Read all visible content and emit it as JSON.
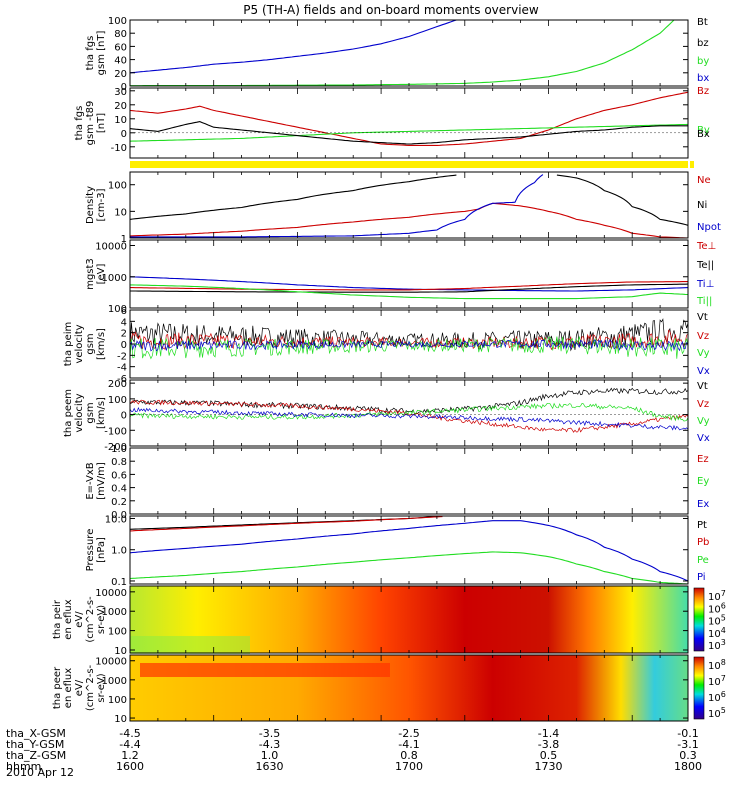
{
  "title": "P5 (TH-A) fields and on-board moments overview",
  "x_rows": [
    {
      "label": "tha_X-GSM",
      "values": [
        "-4.5",
        "-3.5",
        "-2.5",
        "-1.4",
        "-0.1"
      ]
    },
    {
      "label": "tha_Y-GSM",
      "values": [
        "-4.4",
        "-4.3",
        "-4.1",
        "-3.8",
        "-3.1"
      ]
    },
    {
      "label": "tha_Z-GSM",
      "values": [
        "1.2",
        "1.0",
        "0.8",
        "0.5",
        "0.3"
      ]
    },
    {
      "label": "hhmm",
      "values": [
        "1600",
        "1630",
        "1700",
        "1730",
        "1800"
      ]
    }
  ],
  "date_label": "2010 Apr 12",
  "colors": {
    "black": "#000000",
    "red": "#cc0000",
    "green": "#22dd22",
    "blue": "#0000cc",
    "yellow": "#ffee00"
  },
  "chart_data": [
    {
      "type": "line",
      "ylabel": "tha fgs gsm [nT]",
      "ylim": [
        0,
        100
      ],
      "yticks": [
        "0",
        "20",
        "40",
        "60",
        "80",
        "100"
      ],
      "legend": [
        "Bt",
        "bz",
        "by",
        "bx"
      ],
      "series": [
        {
          "name": "bx",
          "color": "blue",
          "x": [
            1600,
            1610,
            1620,
            1630,
            1640,
            1650,
            1660,
            1670,
            1680,
            1690,
            1700,
            1710,
            1717
          ],
          "values": [
            20,
            24,
            28,
            33,
            36,
            40,
            45,
            50,
            56,
            64,
            75,
            90,
            100
          ]
        },
        {
          "name": "by",
          "color": "green",
          "x": [
            1600,
            1640,
            1680,
            1700,
            1720,
            1730,
            1740,
            1750,
            1760,
            1770,
            1780,
            1790,
            1795
          ],
          "values": [
            0.5,
            0.8,
            1.5,
            2.5,
            4,
            6,
            9,
            14,
            22,
            35,
            55,
            80,
            100
          ]
        }
      ]
    },
    {
      "type": "line",
      "ylabel": "tha fgs gsm -t89 [nT]",
      "ylim": [
        -18,
        32
      ],
      "yticks": [
        "-10",
        "0",
        "10",
        "20",
        "30"
      ],
      "legend": [
        "Bz",
        "By",
        "Bx"
      ],
      "series": [
        {
          "name": "Bz",
          "color": "red",
          "x": [
            1600,
            1610,
            1620,
            1625,
            1630,
            1640,
            1650,
            1660,
            1670,
            1680,
            1690,
            1700,
            1710,
            1720,
            1730,
            1740,
            1750,
            1760,
            1770,
            1780,
            1790,
            1800
          ],
          "values": [
            16,
            14,
            17,
            19,
            16,
            12,
            8,
            4,
            0,
            -4,
            -8,
            -9,
            -9,
            -8,
            -6,
            -4,
            2,
            10,
            16,
            20,
            25,
            29
          ]
        },
        {
          "name": "By",
          "color": "green",
          "x": [
            1600,
            1620,
            1640,
            1660,
            1680,
            1700,
            1720,
            1740,
            1760,
            1780,
            1800
          ],
          "values": [
            -6,
            -5,
            -4,
            -2,
            0,
            1,
            2,
            3,
            4,
            5,
            6
          ]
        },
        {
          "name": "Bx",
          "color": "black",
          "x": [
            1600,
            1610,
            1620,
            1625,
            1630,
            1640,
            1650,
            1660,
            1670,
            1680,
            1690,
            1700,
            1710,
            1720,
            1730,
            1740,
            1750,
            1760,
            1770,
            1780,
            1790,
            1800
          ],
          "values": [
            3,
            1,
            6,
            8,
            4,
            2,
            0,
            -2,
            -4,
            -6,
            -7,
            -8,
            -7,
            -5,
            -4,
            -3,
            -1,
            1,
            2,
            4,
            5,
            5
          ]
        }
      ]
    },
    {
      "type": "line",
      "ylabel": "Density [cm-3]",
      "yscale": "log",
      "ylim": [
        1,
        300
      ],
      "yticks": [
        "1",
        "10",
        "100"
      ],
      "legend": [
        "Ne",
        "Ni",
        "Npot"
      ],
      "series": [
        {
          "name": "Ne",
          "color": "red",
          "x": [
            1600,
            1620,
            1640,
            1660,
            1680,
            1700,
            1720,
            1725,
            1730,
            1740,
            1750,
            1760,
            1770,
            1780,
            1790,
            1800
          ],
          "values": [
            1.2,
            1.4,
            1.8,
            2.5,
            4,
            6,
            10,
            12,
            20,
            16,
            10,
            5,
            3,
            1.5,
            1.1,
            1
          ]
        },
        {
          "name": "Ni",
          "color": "black",
          "x": [
            1600,
            1620,
            1640,
            1660,
            1680,
            1700,
            1717
          ],
          "values": [
            5,
            8,
            14,
            28,
            60,
            130,
            230
          ]
        },
        {
          "name": "Ni",
          "color": "black",
          "x": [
            1753,
            1760,
            1770,
            1780,
            1790,
            1800
          ],
          "values": [
            230,
            180,
            60,
            15,
            5,
            3
          ]
        },
        {
          "name": "Npot",
          "color": "blue",
          "x": [
            1600,
            1640,
            1680,
            1700,
            1710,
            1720,
            1730,
            1738,
            1745,
            1748
          ],
          "values": [
            1.1,
            1.1,
            1.2,
            1.5,
            2,
            5,
            20,
            22,
            120,
            240
          ]
        }
      ]
    },
    {
      "type": "line",
      "ylabel": "mgst3 [eV]",
      "yscale": "log",
      "ylim": [
        100,
        15000
      ],
      "yticks": [
        "100",
        "1000",
        "10000"
      ],
      "legend": [
        "Te⊥",
        "Te||",
        "Ti⊥",
        "Ti||"
      ],
      "series": [
        {
          "name": "Ti⊥",
          "color": "blue",
          "x": [
            1600,
            1620,
            1640,
            1660,
            1680,
            1700,
            1720,
            1740,
            1760,
            1780,
            1800
          ],
          "values": [
            1000,
            850,
            700,
            550,
            450,
            400,
            380,
            360,
            350,
            380,
            450
          ]
        },
        {
          "name": "Te⊥",
          "color": "red",
          "x": [
            1600,
            1640,
            1680,
            1700,
            1720,
            1740,
            1760,
            1780,
            1800
          ],
          "values": [
            450,
            400,
            380,
            380,
            420,
            500,
            600,
            680,
            700
          ]
        },
        {
          "name": "Te||",
          "color": "black",
          "x": [
            1600,
            1640,
            1680,
            1700,
            1720,
            1740,
            1760,
            1780,
            1800
          ],
          "values": [
            350,
            330,
            320,
            320,
            330,
            400,
            480,
            550,
            580
          ]
        },
        {
          "name": "Ti||",
          "color": "green",
          "x": [
            1600,
            1620,
            1640,
            1660,
            1680,
            1700,
            1720,
            1740,
            1760,
            1780,
            1790,
            1800
          ],
          "values": [
            550,
            500,
            420,
            330,
            260,
            220,
            200,
            200,
            200,
            230,
            300,
            270
          ]
        }
      ]
    },
    {
      "type": "line",
      "ylabel": "tha peim velocity gsm [km/s]",
      "ylim": [
        -6,
        6
      ],
      "yticks": [
        "-6",
        "-4",
        "-2",
        "0",
        "2",
        "4",
        "6"
      ],
      "legend": [
        "Vt",
        "Vz",
        "Vy",
        "Vx"
      ],
      "series": [
        {
          "name": "Vt",
          "color": "black",
          "x": [
            1600,
            1640,
            1680,
            1720,
            1760,
            1780,
            1800
          ],
          "values": [
            1.8,
            1.4,
            0.9,
            0.6,
            0.8,
            1.6,
            2.8
          ]
        },
        {
          "name": "Vz",
          "color": "red",
          "x": [
            1600,
            1640,
            1680,
            1720,
            1760,
            1780,
            1800
          ],
          "values": [
            0.6,
            0.5,
            0.3,
            0.2,
            0.3,
            0.6,
            1.2
          ]
        },
        {
          "name": "Vy",
          "color": "green",
          "x": [
            1600,
            1640,
            1680,
            1720,
            1760,
            1780,
            1800
          ],
          "values": [
            -0.8,
            -0.6,
            -0.4,
            -0.2,
            -0.2,
            -0.5,
            -1.0
          ]
        },
        {
          "name": "Vx",
          "color": "blue",
          "x": [
            1600,
            1640,
            1680,
            1720,
            1760,
            1780,
            1800
          ],
          "values": [
            -0.3,
            -0.2,
            -0.1,
            0,
            0,
            -0.2,
            -0.6
          ]
        }
      ]
    },
    {
      "type": "line",
      "ylabel": "tha peem velocity gsm [km/s]",
      "ylim": [
        -200,
        220
      ],
      "yticks": [
        "-200",
        "-100",
        "0",
        "100",
        "200"
      ],
      "legend": [
        "Vt",
        "Vz",
        "Vy",
        "Vx"
      ],
      "series": [
        {
          "name": "Vt",
          "color": "black",
          "x": [
            1600,
            1620,
            1640,
            1660,
            1680,
            1700,
            1710,
            1720,
            1730,
            1740,
            1750,
            1760,
            1770,
            1780,
            1790,
            1800
          ],
          "values": [
            80,
            75,
            65,
            55,
            40,
            20,
            25,
            35,
            50,
            75,
            120,
            140,
            150,
            150,
            145,
            150
          ]
        },
        {
          "name": "Vz",
          "color": "red",
          "x": [
            1600,
            1620,
            1640,
            1660,
            1680,
            1700,
            1710,
            1720,
            1730,
            1740,
            1750,
            1760,
            1770,
            1780,
            1790,
            1800
          ],
          "values": [
            80,
            75,
            65,
            55,
            35,
            10,
            -20,
            -40,
            -60,
            -80,
            -100,
            -100,
            -80,
            -60,
            -30,
            -10
          ]
        },
        {
          "name": "Vy",
          "color": "green",
          "x": [
            1600,
            1620,
            1640,
            1660,
            1680,
            1700,
            1720,
            1740,
            1760,
            1780,
            1790,
            1800
          ],
          "values": [
            -5,
            -10,
            -15,
            -15,
            -5,
            10,
            30,
            50,
            60,
            40,
            -10,
            -30
          ]
        },
        {
          "name": "Vx",
          "color": "blue",
          "x": [
            1600,
            1620,
            1640,
            1660,
            1680,
            1700,
            1720,
            1740,
            1760,
            1780,
            1790,
            1800
          ],
          "values": [
            30,
            20,
            10,
            0,
            -5,
            -10,
            -20,
            -30,
            -50,
            -70,
            -80,
            -90
          ]
        }
      ]
    },
    {
      "type": "line",
      "ylabel": "E=-VxB [mV/m]",
      "ylim": [
        0,
        1
      ],
      "yticks": [
        "0.0",
        "0.2",
        "0.4",
        "0.6",
        "0.8",
        "1.0"
      ],
      "legend": [
        "Ez",
        "Ey",
        "Ex"
      ],
      "series": []
    },
    {
      "type": "line",
      "ylabel": "Pressure [nPa]",
      "yscale": "log",
      "ylim": [
        0.08,
        12
      ],
      "yticks": [
        "0.1",
        "1.0",
        "10.0"
      ],
      "legend": [
        "Pt",
        "Pb",
        "Pe",
        "Pi"
      ],
      "series": [
        {
          "name": "Pt",
          "color": "black",
          "x": [
            1600,
            1620,
            1640,
            1660,
            1680,
            1700,
            1710
          ],
          "values": [
            4.5,
            5.2,
            6.2,
            7.3,
            8.5,
            10,
            11.5
          ]
        },
        {
          "name": "Pb",
          "color": "red",
          "x": [
            1600,
            1620,
            1640,
            1660,
            1680,
            1700,
            1712
          ],
          "values": [
            4,
            4.8,
            5.8,
            7,
            8.2,
            10,
            11.5
          ]
        },
        {
          "name": "Pe",
          "color": "green",
          "x": [
            1600,
            1620,
            1640,
            1660,
            1680,
            1700,
            1720,
            1730,
            1740,
            1750,
            1760,
            1770,
            1780,
            1790,
            1800
          ],
          "values": [
            0.12,
            0.15,
            0.2,
            0.28,
            0.4,
            0.55,
            0.75,
            0.85,
            0.8,
            0.6,
            0.35,
            0.2,
            0.12,
            0.09,
            0.08
          ]
        },
        {
          "name": "Pi",
          "color": "blue",
          "x": [
            1600,
            1620,
            1640,
            1660,
            1680,
            1700,
            1720,
            1730,
            1740,
            1750,
            1760,
            1770,
            1780,
            1790,
            1800
          ],
          "values": [
            0.8,
            1.1,
            1.5,
            2.2,
            3.2,
            4.8,
            7,
            8.5,
            8.5,
            6,
            3,
            1.2,
            0.5,
            0.2,
            0.1
          ]
        }
      ]
    },
    {
      "type": "heatmap",
      "ylabel": "tha peir en eflux eV/ (cm^2-s- sr-eV)",
      "yscale": "log",
      "ylim": [
        7,
        20000
      ],
      "yticks": [
        "10",
        "100",
        "1000",
        "10000"
      ],
      "colorbar": {
        "ticks": [
          "10",
          "3",
          "4",
          "5",
          "6",
          "7"
        ]
      }
    },
    {
      "type": "heatmap",
      "ylabel": "tha peer en eflux eV/ (cm^2-s- sr-eV)",
      "yscale": "log",
      "ylim": [
        7,
        20000
      ],
      "yticks": [
        "10",
        "100",
        "1000",
        "10000"
      ],
      "colorbar": {
        "ticks": [
          "10",
          "5",
          "6",
          "7",
          "8"
        ]
      }
    }
  ]
}
